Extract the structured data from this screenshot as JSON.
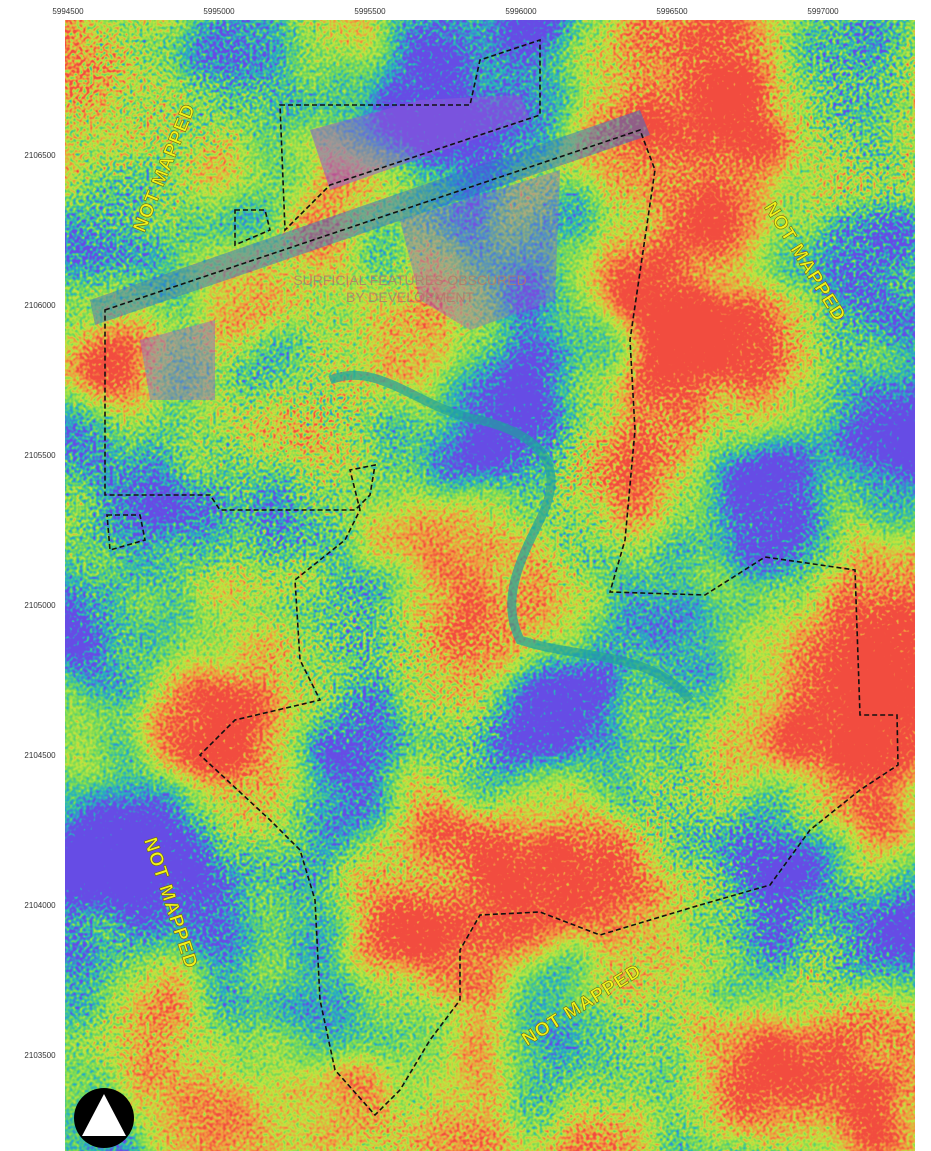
{
  "map": {
    "x_ticks": [
      "5994500",
      "5995000",
      "5995500",
      "5996000",
      "5996500",
      "5997000"
    ],
    "y_ticks": [
      "2106500",
      "2106000",
      "2105500",
      "2105000",
      "2104500",
      "2104000",
      "2103500"
    ],
    "labels": [
      "NOT MAPPED",
      "NOT MAPPED",
      "NOT MAPPED",
      "NOT MAPPED"
    ],
    "note": [
      "SURFICIAL FEATURES OBSCURED",
      "BY DEVELOPMENT"
    ]
  }
}
